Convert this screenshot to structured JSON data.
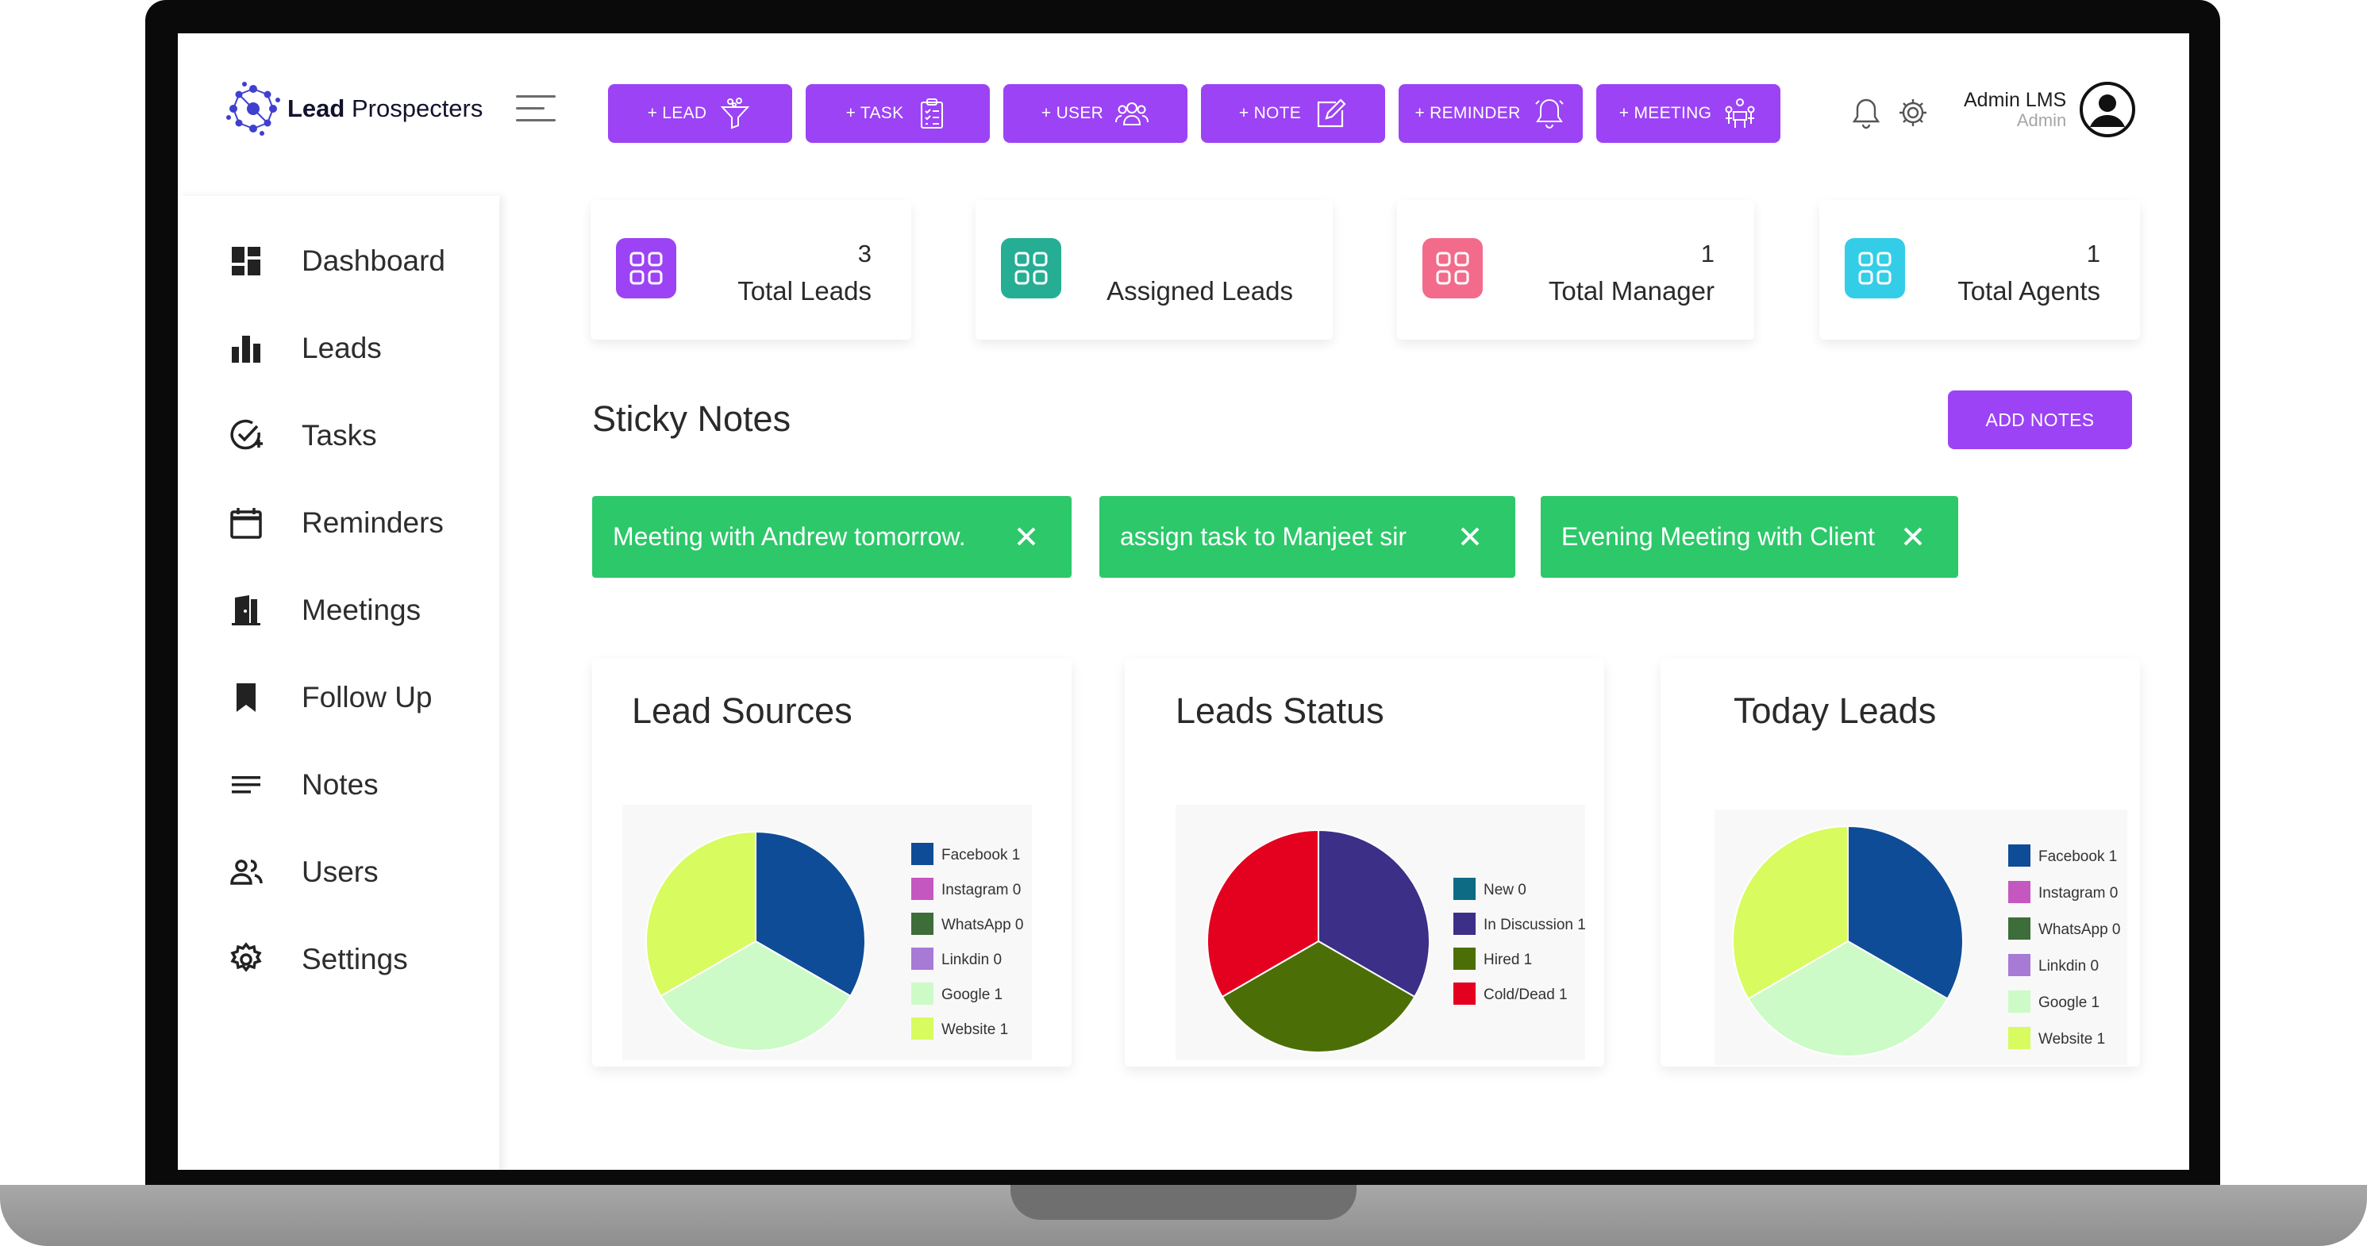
{
  "brand": {
    "name_bold": "Lead",
    "name_rest": " Prospecters"
  },
  "quick_actions": [
    {
      "label": "+ LEAD",
      "icon": "funnel-icon"
    },
    {
      "label": "+ TASK",
      "icon": "clipboard-icon"
    },
    {
      "label": "+ USER",
      "icon": "users-icon"
    },
    {
      "label": "+ NOTE",
      "icon": "edit-note-icon"
    },
    {
      "label": "+ REMINDER",
      "icon": "bell-icon"
    },
    {
      "label": "+ MEETING",
      "icon": "meeting-icon"
    }
  ],
  "user": {
    "name": "Admin LMS",
    "role": "Admin"
  },
  "sidebar": {
    "items": [
      {
        "label": "Dashboard",
        "icon": "dashboard-icon"
      },
      {
        "label": "Leads",
        "icon": "bar-chart-icon"
      },
      {
        "label": "Tasks",
        "icon": "task-check-icon"
      },
      {
        "label": "Reminders",
        "icon": "calendar-icon"
      },
      {
        "label": "Meetings",
        "icon": "door-icon"
      },
      {
        "label": "Follow Up",
        "icon": "bookmark-icon"
      },
      {
        "label": "Notes",
        "icon": "lines-icon"
      },
      {
        "label": "Users",
        "icon": "users-icon"
      },
      {
        "label": "Settings",
        "icon": "gear-icon"
      }
    ]
  },
  "stats": [
    {
      "value": "3",
      "label": "Total Leads",
      "color": "#9c43f5"
    },
    {
      "value": "",
      "label": "Assigned Leads",
      "color": "#26ae95"
    },
    {
      "value": "1",
      "label": "Total Manager",
      "color": "#f36b8b"
    },
    {
      "value": "1",
      "label": "Total Agents",
      "color": "#33cde8"
    }
  ],
  "sticky_notes": {
    "title": "Sticky Notes",
    "add_label": "ADD NOTES",
    "notes": [
      "Meeting with Andrew tomorrow.",
      "assign task to Manjeet sir",
      "Evening Meeting with Client"
    ]
  },
  "chart_data": [
    {
      "type": "pie",
      "title": "Lead Sources",
      "categories": [
        "Facebook",
        "Instagram",
        "WhatsApp",
        "Linkdin",
        "Google",
        "Website"
      ],
      "values": [
        1,
        0,
        0,
        0,
        1,
        1
      ],
      "colors": [
        "#0f4c97",
        "#c557c0",
        "#3d6d39",
        "#a77ad6",
        "#cdfbc7",
        "#d8fb5f"
      ],
      "legend_position": "right"
    },
    {
      "type": "pie",
      "title": "Leads Status",
      "categories": [
        "New",
        "In Discussion",
        "Hired",
        "Cold/Dead"
      ],
      "values": [
        0,
        1,
        1,
        1
      ],
      "colors": [
        "#0d6b84",
        "#3c2f87",
        "#4b6f06",
        "#e4001f"
      ],
      "legend_position": "right"
    },
    {
      "type": "pie",
      "title": "Today Leads",
      "categories": [
        "Facebook",
        "Instagram",
        "WhatsApp",
        "Linkdin",
        "Google",
        "Website"
      ],
      "values": [
        1,
        0,
        0,
        0,
        1,
        1
      ],
      "colors": [
        "#0f4c97",
        "#c557c0",
        "#3d6d39",
        "#a77ad6",
        "#cdfbc7",
        "#d8fb5f"
      ],
      "legend_position": "right"
    }
  ]
}
